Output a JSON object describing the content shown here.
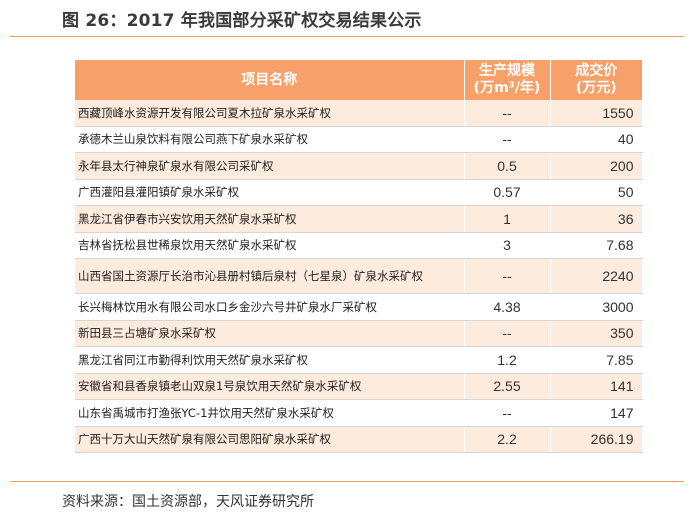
{
  "figure": {
    "title": "图 26：2017 年我国部分采矿权交易结果公示",
    "source": "资料来源：国土资源部，天风证券研究所"
  },
  "table": {
    "headers": {
      "name": "项目名称",
      "scale_line1": "生产规模",
      "scale_line2": "(万m³/年)",
      "price_line1": "成交价",
      "price_line2": "(万元)"
    },
    "rows": [
      {
        "name": "西藏顶峰水资源开发有限公司夏木拉矿泉水采矿权",
        "scale": "--",
        "price": "1550"
      },
      {
        "name": "承德木兰山泉饮料有限公司燕下矿泉水采矿权",
        "scale": "--",
        "price": "40"
      },
      {
        "name": "永年县太行神泉矿泉水有限公司采矿权",
        "scale": "0.5",
        "price": "200"
      },
      {
        "name": "广西灌阳县灌阳镇矿泉水采矿权",
        "scale": "0.57",
        "price": "50"
      },
      {
        "name": "黑龙江省伊春市兴安饮用天然矿泉水采矿权",
        "scale": "1",
        "price": "36"
      },
      {
        "name": "吉林省抚松县世稀泉饮用天然矿泉水采矿权",
        "scale": "3",
        "price": "7.68"
      },
      {
        "name": "山西省国土资源厅长治市沁县册村镇后泉村（七星泉）矿泉水采矿权",
        "scale": "--",
        "price": "2240"
      },
      {
        "name": "长兴梅林饮用水有限公司水口乡金沙六号井矿泉水厂采矿权",
        "scale": "4.38",
        "price": "3000"
      },
      {
        "name": "新田县三占塘矿泉水采矿权",
        "scale": "--",
        "price": "350"
      },
      {
        "name": "黑龙江省同江市勤得利饮用天然矿泉水采矿权",
        "scale": "1.2",
        "price": "7.85"
      },
      {
        "name": "安徽省和县香泉镇老山双泉1号泉饮用天然矿泉水采矿权",
        "scale": "2.55",
        "price": "141"
      },
      {
        "name": "山东省禹城市打渔张YC-1井饮用天然矿泉水采矿权",
        "scale": "--",
        "price": "147"
      },
      {
        "name": "广西十万大山天然矿泉有限公司思阳矿泉水采矿权",
        "scale": "2.2",
        "price": "266.19"
      }
    ]
  }
}
